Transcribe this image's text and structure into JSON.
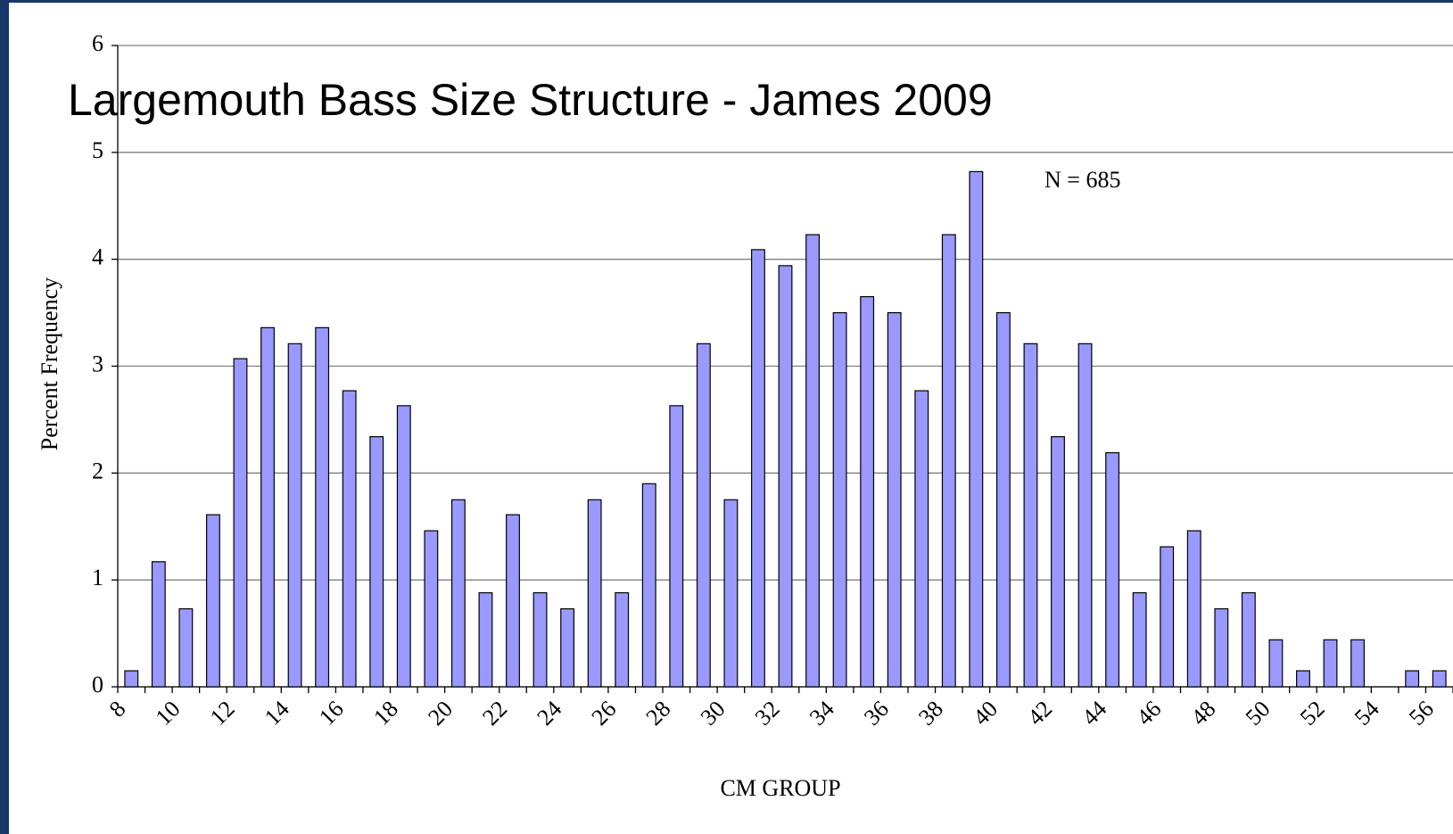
{
  "chart_data": {
    "type": "bar",
    "title": "Largemouth Bass Size Structure - James 2009",
    "annotation": "N = 685",
    "x_label": "CM GROUP",
    "y_label": "Percent Frequency",
    "categories": [
      "8",
      null,
      "10",
      null,
      "12",
      null,
      "14",
      null,
      "16",
      null,
      "18",
      null,
      "20",
      null,
      "22",
      null,
      "24",
      null,
      "26",
      null,
      "28",
      null,
      "30",
      null,
      "32",
      null,
      "34",
      null,
      "36",
      null,
      "38",
      null,
      "40",
      null,
      "42",
      null,
      "44",
      null,
      "46",
      null,
      "48",
      null,
      "50",
      null,
      "52",
      null,
      "54",
      null,
      "56"
    ],
    "values": [
      0.15,
      1.17,
      0.73,
      1.61,
      3.07,
      3.36,
      3.21,
      3.36,
      2.77,
      2.34,
      2.63,
      1.46,
      1.75,
      0.88,
      1.61,
      0.88,
      0.73,
      1.75,
      0.88,
      1.9,
      2.63,
      3.21,
      1.75,
      4.09,
      3.94,
      4.23,
      3.5,
      3.65,
      3.5,
      2.77,
      4.23,
      4.82,
      3.5,
      3.21,
      2.34,
      3.21,
      2.19,
      0.88,
      1.31,
      1.46,
      0.73,
      0.88,
      0.44,
      0.15,
      0.44,
      0.44,
      0,
      0.15,
      0.15
    ],
    "color": "#9999ff",
    "ylim": [
      0,
      6
    ],
    "yticks": [
      0,
      1,
      2,
      3,
      4,
      5,
      6
    ],
    "grid": true
  }
}
